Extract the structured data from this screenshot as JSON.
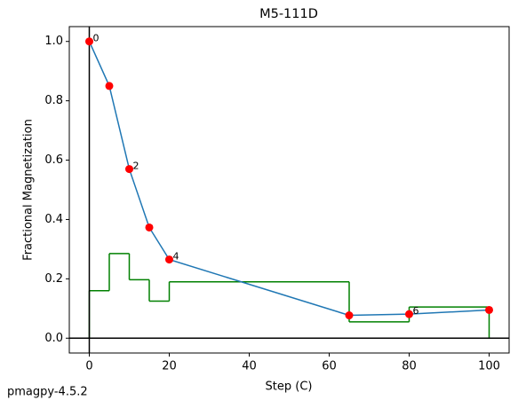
{
  "chart_data": {
    "type": "line",
    "title": "M5-111D",
    "xlabel": "Step (C)",
    "ylabel": "Fractional Magnetization",
    "footer": "pmagpy-4.5.2",
    "x": [
      0,
      5,
      10,
      15,
      20,
      65,
      80,
      100
    ],
    "values": [
      1.0,
      0.85,
      0.57,
      0.373,
      0.265,
      0.077,
      0.081,
      0.095
    ],
    "point_labels": [
      "0",
      null,
      "2",
      null,
      "4",
      null,
      "6",
      null
    ],
    "color": "#1f77b4",
    "marker_color": "#ff0000",
    "steps": {
      "edges": [
        0,
        5,
        10,
        15,
        20,
        65,
        80,
        100
      ],
      "values": [
        0.16,
        0.285,
        0.197,
        0.125,
        0.19,
        0.055,
        0.105
      ],
      "color": "#008000"
    },
    "xlim": [
      -5,
      105
    ],
    "ylim": [
      -0.05,
      1.05
    ],
    "xticks": [
      0,
      20,
      40,
      60,
      80,
      100
    ],
    "yticks": [
      {
        "value": 0,
        "label": "0.0"
      },
      0.2,
      0.4,
      0.6,
      0.8,
      {
        "value": 1,
        "label": "1.0"
      }
    ]
  }
}
